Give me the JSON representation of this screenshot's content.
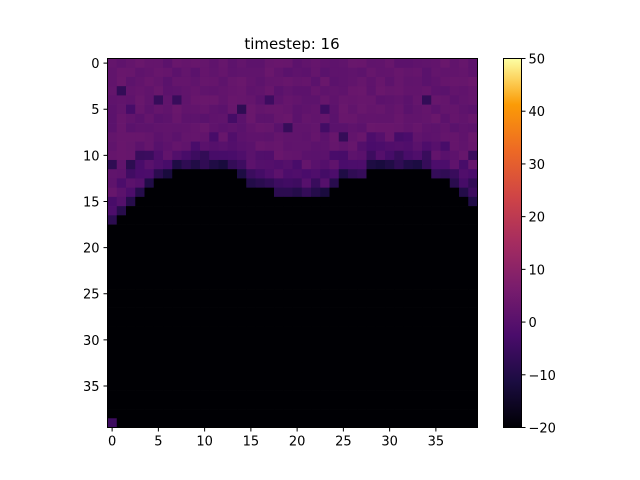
{
  "chart_data": {
    "type": "heatmap",
    "title": "timestep: 16",
    "xlabel": "",
    "ylabel": "",
    "colormap": "inferno",
    "grid": false,
    "rows": 40,
    "cols": 40,
    "x_ticks": [
      0,
      5,
      10,
      15,
      20,
      25,
      30,
      35
    ],
    "y_ticks": [
      0,
      5,
      10,
      15,
      20,
      25,
      30,
      35
    ],
    "colorbar": {
      "vmin": -20,
      "vmax": 50,
      "ticks": [
        -20,
        -10,
        0,
        10,
        20,
        30,
        40,
        50
      ],
      "placement": "right"
    },
    "surface_profile_row_by_column": [
      18,
      17,
      16,
      15,
      14,
      13,
      13,
      12,
      12,
      12,
      12,
      12,
      12,
      12,
      13,
      14,
      14,
      14,
      15,
      15,
      15,
      15,
      15,
      15,
      14,
      13,
      13,
      13,
      12,
      12,
      12,
      12,
      12,
      12,
      12,
      13,
      13,
      14,
      15,
      16
    ],
    "values_above_surface_typical": 2,
    "values_below_surface": -20
  }
}
